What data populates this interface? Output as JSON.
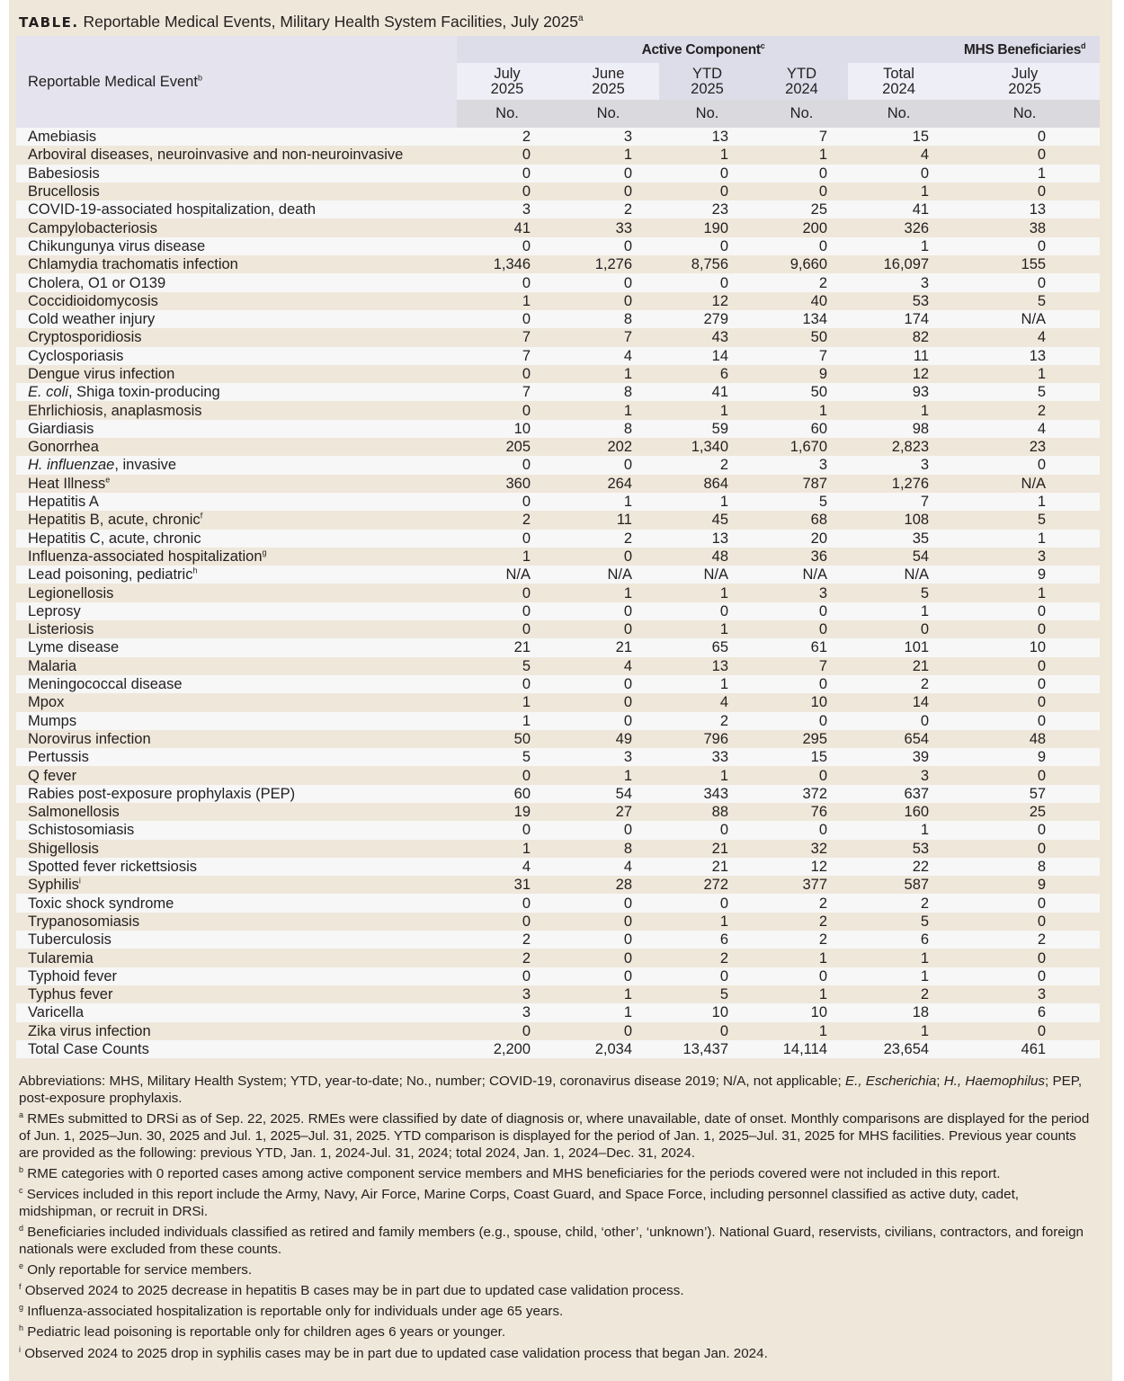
{
  "title": {
    "label": "TABLE.",
    "text": "Reportable Medical Events, Military Health System Facilities, July 2025",
    "footnote": "a"
  },
  "header": {
    "event_col": "Reportable Medical Event",
    "event_col_fn": "b",
    "active_group": "Active Component",
    "active_group_fn": "c",
    "mhs_group": "MHS Beneficiaries",
    "mhs_group_fn": "d",
    "columns": [
      {
        "line1": "July",
        "line2": "2025",
        "unit": "No."
      },
      {
        "line1": "June",
        "line2": "2025",
        "unit": "No."
      },
      {
        "line1": "YTD",
        "line2": "2025",
        "unit": "No."
      },
      {
        "line1": "YTD",
        "line2": "2024",
        "unit": "No."
      },
      {
        "line1": "Total",
        "line2": "2024",
        "unit": "No."
      },
      {
        "line1": "July",
        "line2": "2025",
        "unit": "No."
      }
    ]
  },
  "rows": [
    {
      "name": "Amebiasis",
      "v": [
        "2",
        "3",
        "13",
        "7",
        "15",
        "0"
      ]
    },
    {
      "name": "Arboviral diseases, neuroinvasive and non-neuroinvasive",
      "v": [
        "0",
        "1",
        "1",
        "1",
        "4",
        "0"
      ]
    },
    {
      "name": "Babesiosis",
      "v": [
        "0",
        "0",
        "0",
        "0",
        "0",
        "1"
      ]
    },
    {
      "name": "Brucellosis",
      "v": [
        "0",
        "0",
        "0",
        "0",
        "1",
        "0"
      ]
    },
    {
      "name": "COVID-19-associated hospitalization, death",
      "v": [
        "3",
        "2",
        "23",
        "25",
        "41",
        "13"
      ]
    },
    {
      "name": "Campylobacteriosis",
      "v": [
        "41",
        "33",
        "190",
        "200",
        "326",
        "38"
      ]
    },
    {
      "name": "Chikungunya virus disease",
      "v": [
        "0",
        "0",
        "0",
        "0",
        "1",
        "0"
      ]
    },
    {
      "name": "Chlamydia trachomatis infection",
      "v": [
        "1,346",
        "1,276",
        "8,756",
        "9,660",
        "16,097",
        "155"
      ]
    },
    {
      "name": "Cholera, O1 or O139",
      "v": [
        "0",
        "0",
        "0",
        "2",
        "3",
        "0"
      ]
    },
    {
      "name": "Coccidioidomycosis",
      "v": [
        "1",
        "0",
        "12",
        "40",
        "53",
        "5"
      ]
    },
    {
      "name": "Cold weather injury",
      "v": [
        "0",
        "8",
        "279",
        "134",
        "174",
        "N/A"
      ]
    },
    {
      "name": "Cryptosporidiosis",
      "v": [
        "7",
        "7",
        "43",
        "50",
        "82",
        "4"
      ]
    },
    {
      "name": "Cyclosporiasis",
      "v": [
        "7",
        "4",
        "14",
        "7",
        "11",
        "13"
      ]
    },
    {
      "name": "Dengue virus infection",
      "v": [
        "0",
        "1",
        "6",
        "9",
        "12",
        "1"
      ]
    },
    {
      "name": "Shiga toxin-producing",
      "italic_prefix": "E. coli",
      "v": [
        "7",
        "8",
        "41",
        "50",
        "93",
        "5"
      ]
    },
    {
      "name": "Ehrlichiosis, anaplasmosis",
      "v": [
        "0",
        "1",
        "1",
        "1",
        "1",
        "2"
      ]
    },
    {
      "name": "Giardiasis",
      "v": [
        "10",
        "8",
        "59",
        "60",
        "98",
        "4"
      ]
    },
    {
      "name": "Gonorrhea",
      "v": [
        "205",
        "202",
        "1,340",
        "1,670",
        "2,823",
        "23"
      ]
    },
    {
      "name": "invasive",
      "italic_prefix": "H. influenzae",
      "v": [
        "0",
        "0",
        "2",
        "3",
        "3",
        "0"
      ]
    },
    {
      "name": "Heat Illness",
      "fn": "e",
      "v": [
        "360",
        "264",
        "864",
        "787",
        "1,276",
        "N/A"
      ]
    },
    {
      "name": "Hepatitis A",
      "v": [
        "0",
        "1",
        "1",
        "5",
        "7",
        "1"
      ]
    },
    {
      "name": "Hepatitis B, acute, chronic",
      "fn": "f",
      "v": [
        "2",
        "11",
        "45",
        "68",
        "108",
        "5"
      ]
    },
    {
      "name": "Hepatitis C, acute, chronic",
      "v": [
        "0",
        "2",
        "13",
        "20",
        "35",
        "1"
      ]
    },
    {
      "name": "Influenza-associated hospitalization",
      "fn": "g",
      "v": [
        "1",
        "0",
        "48",
        "36",
        "54",
        "3"
      ]
    },
    {
      "name": "Lead poisoning, pediatric",
      "fn": "h",
      "v": [
        "N/A",
        "N/A",
        "N/A",
        "N/A",
        "N/A",
        "9"
      ]
    },
    {
      "name": "Legionellosis",
      "v": [
        "0",
        "1",
        "1",
        "3",
        "5",
        "1"
      ]
    },
    {
      "name": "Leprosy",
      "v": [
        "0",
        "0",
        "0",
        "0",
        "1",
        "0"
      ]
    },
    {
      "name": "Listeriosis",
      "v": [
        "0",
        "0",
        "1",
        "0",
        "0",
        "0"
      ]
    },
    {
      "name": "Lyme disease",
      "v": [
        "21",
        "21",
        "65",
        "61",
        "101",
        "10"
      ]
    },
    {
      "name": "Malaria",
      "v": [
        "5",
        "4",
        "13",
        "7",
        "21",
        "0"
      ]
    },
    {
      "name": "Meningococcal disease",
      "v": [
        "0",
        "0",
        "1",
        "0",
        "2",
        "0"
      ]
    },
    {
      "name": "Mpox",
      "v": [
        "1",
        "0",
        "4",
        "10",
        "14",
        "0"
      ]
    },
    {
      "name": "Mumps",
      "v": [
        "1",
        "0",
        "2",
        "0",
        "0",
        "0"
      ]
    },
    {
      "name": "Norovirus infection",
      "v": [
        "50",
        "49",
        "796",
        "295",
        "654",
        "48"
      ]
    },
    {
      "name": "Pertussis",
      "v": [
        "5",
        "3",
        "33",
        "15",
        "39",
        "9"
      ]
    },
    {
      "name": "Q fever",
      "v": [
        "0",
        "1",
        "1",
        "0",
        "3",
        "0"
      ]
    },
    {
      "name": "Rabies post-exposure prophylaxis (PEP)",
      "v": [
        "60",
        "54",
        "343",
        "372",
        "637",
        "57"
      ]
    },
    {
      "name": "Salmonellosis",
      "v": [
        "19",
        "27",
        "88",
        "76",
        "160",
        "25"
      ]
    },
    {
      "name": "Schistosomiasis",
      "v": [
        "0",
        "0",
        "0",
        "0",
        "1",
        "0"
      ]
    },
    {
      "name": "Shigellosis",
      "v": [
        "1",
        "8",
        "21",
        "32",
        "53",
        "0"
      ]
    },
    {
      "name": "Spotted fever rickettsiosis",
      "v": [
        "4",
        "4",
        "21",
        "12",
        "22",
        "8"
      ]
    },
    {
      "name": "Syphilis",
      "fn": "i",
      "v": [
        "31",
        "28",
        "272",
        "377",
        "587",
        "9"
      ]
    },
    {
      "name": "Toxic shock syndrome",
      "v": [
        "0",
        "0",
        "0",
        "2",
        "2",
        "0"
      ]
    },
    {
      "name": "Trypanosomiasis",
      "v": [
        "0",
        "0",
        "1",
        "2",
        "5",
        "0"
      ]
    },
    {
      "name": "Tuberculosis",
      "v": [
        "2",
        "0",
        "6",
        "2",
        "6",
        "2"
      ]
    },
    {
      "name": "Tularemia",
      "v": [
        "2",
        "0",
        "2",
        "1",
        "1",
        "0"
      ]
    },
    {
      "name": "Typhoid fever",
      "v": [
        "0",
        "0",
        "0",
        "0",
        "1",
        "0"
      ]
    },
    {
      "name": "Typhus fever",
      "v": [
        "3",
        "1",
        "5",
        "1",
        "2",
        "3"
      ]
    },
    {
      "name": "Varicella",
      "v": [
        "3",
        "1",
        "10",
        "10",
        "18",
        "6"
      ]
    },
    {
      "name": "Zika virus infection",
      "v": [
        "0",
        "0",
        "0",
        "1",
        "1",
        "0"
      ]
    },
    {
      "name": "Total Case Counts",
      "v": [
        "2,200",
        "2,034",
        "13,437",
        "14,114",
        "23,654",
        "461"
      ]
    }
  ],
  "notes": {
    "abbreviations_a": "Abbreviations: MHS, Military Health System; YTD, year-to-date; No., number; COVID-19, coronavirus disease 2019; N/A, not applicable; ",
    "abbreviations_e": "E., Escherichia",
    "abbreviations_sep": "; ",
    "abbreviations_h": "H., Haemophilus",
    "abbreviations_b": "; PEP, post-exposure prophylaxis.",
    "footnotes": [
      {
        "mark": "a",
        "text": " RMEs submitted to DRSi as of Sep. 22, 2025. RMEs were classified by date of diagnosis or, where unavailable, date of onset. Monthly comparisons are displayed for the period of Jun. 1, 2025–Jun. 30, 2025 and Jul. 1, 2025–Jul. 31, 2025. YTD comparison is displayed for the period of Jan. 1, 2025–Jul. 31, 2025 for MHS facilities. Previous year counts are provided as the following: previous YTD, Jan. 1, 2024-Jul. 31, 2024; total 2024, Jan. 1, 2024–Dec. 31, 2024."
      },
      {
        "mark": "b",
        "text": " RME categories with 0 reported cases among active component service members and MHS beneficiaries for the periods covered were not included in this report."
      },
      {
        "mark": "c",
        "text": " Services included in this report include the Army, Navy, Air Force, Marine Corps, Coast Guard, and Space Force, including personnel classified as active duty, cadet, midshipman, or recruit in DRSi."
      },
      {
        "mark": "d",
        "text": " Beneficiaries included individuals classified as retired and family members (e.g., spouse, child, ‘other’, ‘unknown’). National Guard, reservists, civilians, contractors, and foreign nationals were excluded from these counts."
      },
      {
        "mark": "e",
        "text": " Only reportable for service members."
      },
      {
        "mark": "f",
        "text": " Observed 2024 to 2025 decrease in hepatitis B cases may be in part due to updated case validation process."
      },
      {
        "mark": "g",
        "text": " Influenza-associated hospitalization is reportable only for individuals under age 65 years."
      },
      {
        "mark": "h",
        "text": " Pediatric lead poisoning is reportable only for children ages 6 years or younger."
      },
      {
        "mark": "i",
        "text": " Observed 2024 to 2025 drop in syphilis cases may be in part due to updated case validation process that began Jan. 2024."
      }
    ]
  }
}
